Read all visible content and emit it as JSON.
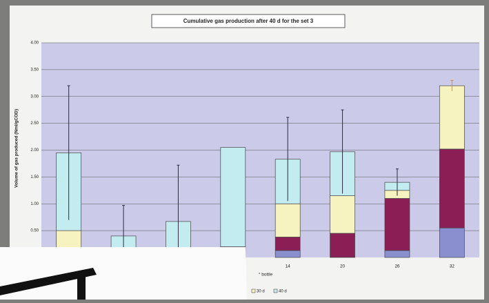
{
  "chart_data": {
    "type": "bar",
    "stacked": true,
    "title": "Cumulative gas production after 40 d for the set 3",
    "y_label": "Volume of gas produced (Nml/gCOD)",
    "x_label": "° bottle",
    "categories": [
      null,
      null,
      null,
      null,
      "14",
      "20",
      "26",
      "32"
    ],
    "series": [
      {
        "name": null,
        "color": "#8a8fd0",
        "values": [
          0,
          0,
          0,
          0,
          0.13,
          0,
          0.13,
          0.55
        ]
      },
      {
        "name": null,
        "color": "#8b1f55",
        "values": [
          0,
          0,
          0,
          0,
          0.25,
          0.45,
          0.97,
          1.47
        ]
      },
      {
        "name": "30 d",
        "color": "#f7f3c0",
        "values": [
          0.5,
          0,
          0,
          0.2,
          0.62,
          0.7,
          0.15,
          1.18
        ],
        "errors": [
          null,
          null,
          null,
          null,
          null,
          null,
          null,
          0.1
        ]
      },
      {
        "name": "40 d",
        "color": "#c3ecf0",
        "values": [
          1.45,
          0.4,
          0.67,
          1.85,
          0.83,
          0.82,
          0.15,
          0
        ],
        "errors": [
          1.25,
          0.57,
          1.05,
          null,
          0.78,
          0.78,
          0.25,
          null
        ]
      }
    ],
    "ylim": [
      0,
      4
    ],
    "yticks": [
      {
        "value": 0.5,
        "label": "0.50"
      },
      {
        "value": 1,
        "label": "1.00"
      },
      {
        "value": 1.5,
        "label": "1.50"
      },
      {
        "value": 2,
        "label": "2.00"
      },
      {
        "value": 2.5,
        "label": "2.50"
      },
      {
        "value": 3,
        "label": "3.00"
      },
      {
        "value": 3.5,
        "label": "3.50"
      },
      {
        "value": 4,
        "label": "4.00"
      }
    ],
    "grid": true,
    "plot_color": "#cbcae8"
  }
}
